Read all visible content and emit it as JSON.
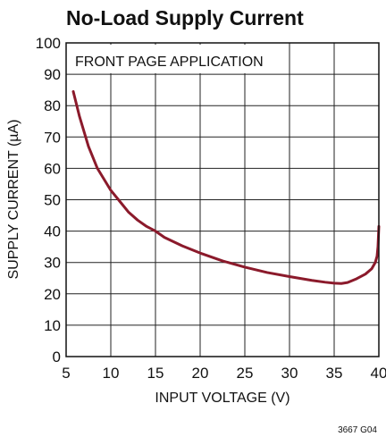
{
  "figure_id": "3667 G04",
  "chart_data": {
    "type": "line",
    "title": "No-Load Supply Current",
    "xlabel": "INPUT VOLTAGE (V)",
    "ylabel": "SUPPLY CURRENT (µA)",
    "annotation": "FRONT PAGE APPLICATION",
    "xlim": [
      5,
      40
    ],
    "ylim": [
      0,
      100
    ],
    "xticks": [
      5,
      10,
      15,
      20,
      25,
      30,
      35,
      40
    ],
    "yticks": [
      0,
      10,
      20,
      30,
      40,
      50,
      60,
      70,
      80,
      90,
      100
    ],
    "grid": true,
    "line_color": "#8b1a2b",
    "series": [
      {
        "points": [
          [
            5.8,
            84.5
          ],
          [
            6.5,
            76.5
          ],
          [
            7.5,
            67
          ],
          [
            8.5,
            60
          ],
          [
            10,
            53
          ],
          [
            11,
            49.5
          ],
          [
            12,
            46
          ],
          [
            13,
            43.5
          ],
          [
            14,
            41.5
          ],
          [
            15,
            40
          ],
          [
            16,
            38
          ],
          [
            18,
            35.3
          ],
          [
            20,
            33
          ],
          [
            22.5,
            30.5
          ],
          [
            25,
            28.5
          ],
          [
            27.5,
            26.8
          ],
          [
            30,
            25.5
          ],
          [
            32.5,
            24.3
          ],
          [
            34,
            23.7
          ],
          [
            35,
            23.4
          ],
          [
            35.8,
            23.3
          ],
          [
            36.5,
            23.6
          ],
          [
            37.5,
            24.8
          ],
          [
            38.5,
            26.3
          ],
          [
            39.2,
            28
          ],
          [
            39.6,
            30
          ],
          [
            39.8,
            32
          ],
          [
            39.9,
            35
          ],
          [
            40,
            41.5
          ]
        ]
      }
    ]
  }
}
